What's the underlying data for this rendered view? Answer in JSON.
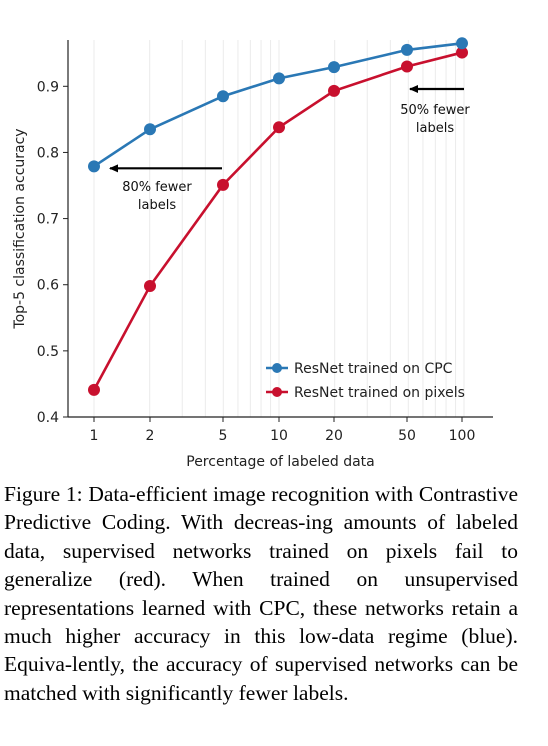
{
  "chart_data": {
    "type": "line",
    "xlabel": "Percentage of labeled data",
    "ylabel": "Top-5 classification accuracy",
    "x_scale": "log",
    "x": [
      1,
      2,
      5,
      10,
      20,
      50,
      100
    ],
    "x_tick_labels": [
      "1",
      "2",
      "5",
      "10",
      "20",
      "50",
      "100"
    ],
    "ylim": [
      0.4,
      0.97
    ],
    "y_ticks": [
      0.4,
      0.5,
      0.6,
      0.7,
      0.8,
      0.9
    ],
    "y_tick_labels": [
      "0.4",
      "0.5",
      "0.6",
      "0.7",
      "0.8",
      "0.9"
    ],
    "grid": "vertical",
    "legend_position": "bottom-right",
    "series": [
      {
        "name": "ResNet trained on CPC",
        "color": "#2a78b5",
        "values": [
          0.779,
          0.835,
          0.885,
          0.912,
          0.929,
          0.955,
          0.965
        ]
      },
      {
        "name": "ResNet trained on pixels",
        "color": "#c8102e",
        "values": [
          0.441,
          0.598,
          0.751,
          0.838,
          0.893,
          0.93,
          0.951
        ]
      }
    ],
    "annotations": [
      {
        "lines": [
          "80% fewer",
          "labels"
        ],
        "arrow_from_x": 5,
        "arrow_to_x": 1,
        "at_y": 0.779
      },
      {
        "lines": [
          "50% fewer",
          "labels"
        ],
        "arrow_from_x": 100,
        "arrow_to_x": 50,
        "at_y": 0.93
      }
    ]
  },
  "caption": "Figure 1:  Data-efficient image recognition with Contrastive Predictive Coding.  With decreas-ing amounts of labeled data, supervised networks trained on pixels fail to generalize (red).  When trained on unsupervised representations learned with CPC, these networks retain a much higher accuracy in this low-data regime (blue).  Equiva-lently, the accuracy of supervised networks can be matched with significantly fewer labels."
}
